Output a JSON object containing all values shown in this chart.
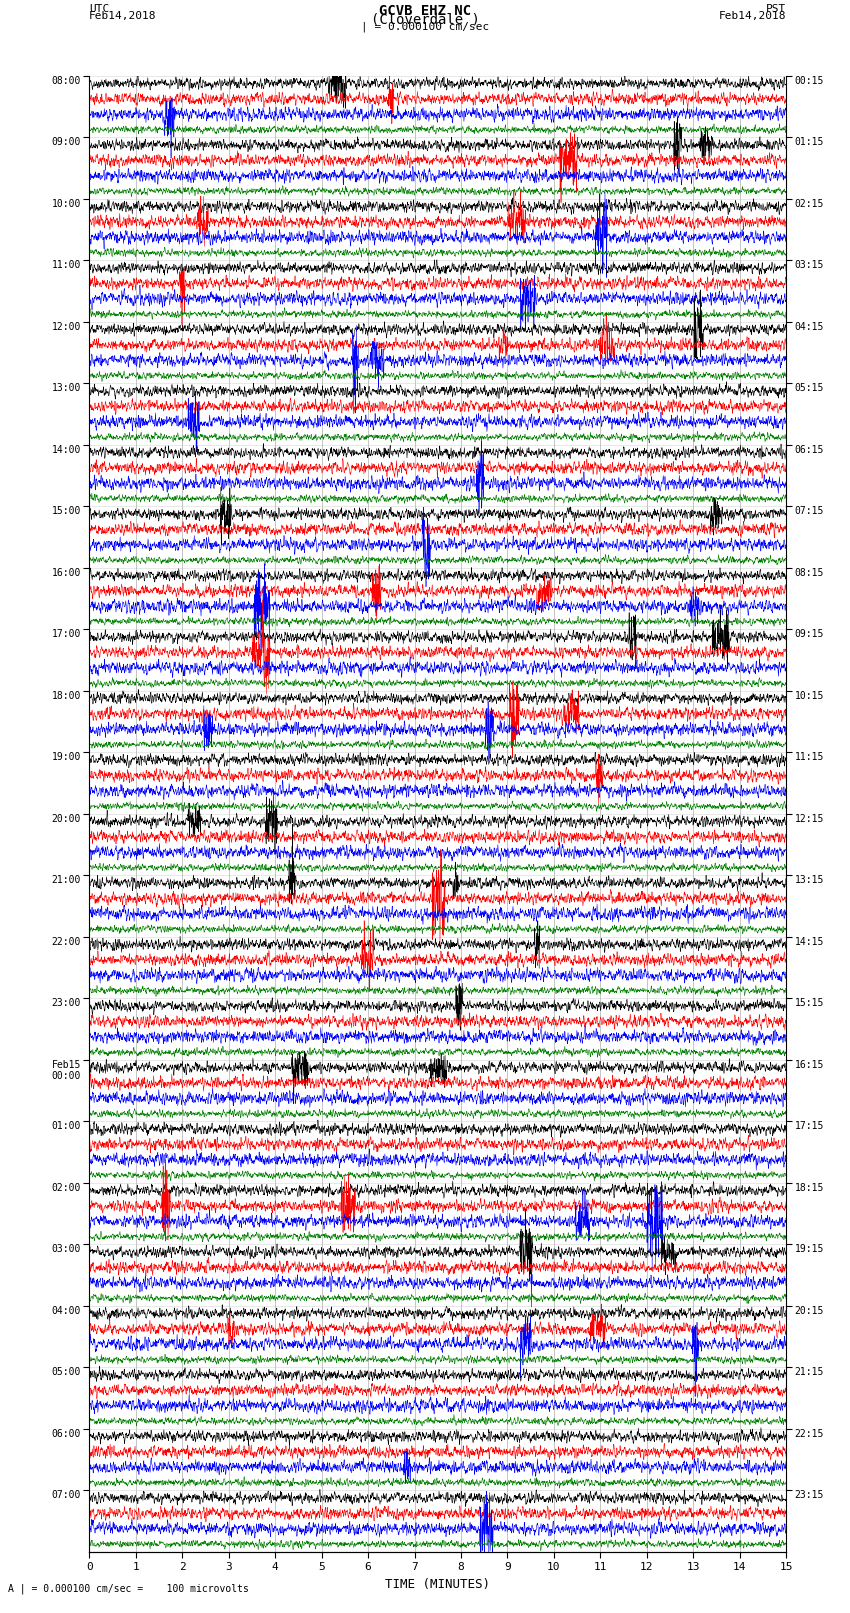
{
  "title_line1": "GCVB EHZ NC",
  "title_line2": "(Cloverdale )",
  "scale_label": "= 0.000100 cm/sec",
  "footer_label": "= 0.000100 cm/sec =    100 microvolts",
  "xlabel": "TIME (MINUTES)",
  "left_times": [
    "08:00",
    "09:00",
    "10:00",
    "11:00",
    "12:00",
    "13:00",
    "14:00",
    "15:00",
    "16:00",
    "17:00",
    "18:00",
    "19:00",
    "20:00",
    "21:00",
    "22:00",
    "23:00",
    "Feb15\n00:00",
    "01:00",
    "02:00",
    "03:00",
    "04:00",
    "05:00",
    "06:00",
    "07:00"
  ],
  "right_times": [
    "00:15",
    "01:15",
    "02:15",
    "03:15",
    "04:15",
    "05:15",
    "06:15",
    "07:15",
    "08:15",
    "09:15",
    "10:15",
    "11:15",
    "12:15",
    "13:15",
    "14:15",
    "15:15",
    "16:15",
    "17:15",
    "18:15",
    "19:15",
    "20:15",
    "21:15",
    "22:15",
    "23:15"
  ],
  "n_hours": 24,
  "n_traces": 4,
  "trace_colors": [
    "black",
    "red",
    "blue",
    "green"
  ],
  "bg_color": "white",
  "grid_color": "#aaaaaa",
  "figwidth": 8.5,
  "figheight": 16.13,
  "dpi": 100,
  "xmin": 0,
  "xmax": 15,
  "noise_amplitudes": [
    0.28,
    0.3,
    0.32,
    0.18
  ],
  "seed": 42,
  "nx": 3000
}
